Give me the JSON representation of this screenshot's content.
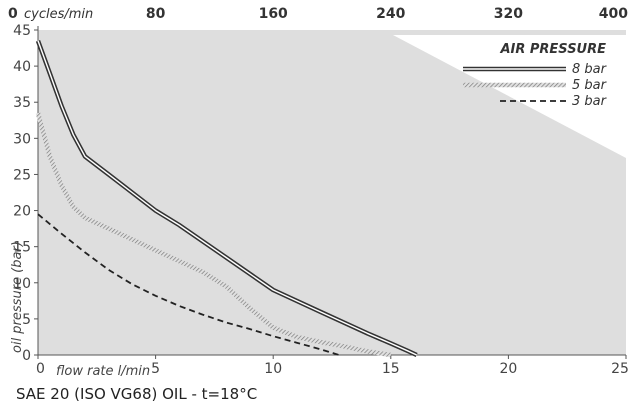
{
  "chart_data": {
    "type": "line",
    "xlabel": "flow rate l/min",
    "ylabel": "oil pressure (bar)",
    "xlim": [
      0,
      25
    ],
    "ylim": [
      0,
      45
    ],
    "x_ticks": [
      "0",
      "5",
      "10",
      "15",
      "20",
      "25"
    ],
    "y_ticks": [
      "0",
      "5",
      "10",
      "15",
      "20",
      "25",
      "30",
      "35",
      "40",
      "45"
    ],
    "top_axis": {
      "label": "cycles/min",
      "ticks": [
        "0",
        "80",
        "160",
        "240",
        "320",
        "400"
      ]
    },
    "legend": {
      "title": "AIR PRESSURE",
      "position": "top-right"
    },
    "grid": false,
    "series": [
      {
        "name": "8 bar",
        "style": "double-line",
        "color": "#333333",
        "x": [
          0,
          0.5,
          1,
          1.5,
          2,
          3,
          4,
          5,
          6,
          8,
          10,
          12,
          14,
          15,
          15.7,
          16.1
        ],
        "y": [
          43.5,
          39,
          34.5,
          30.5,
          27.5,
          25,
          22.5,
          20,
          18,
          13.5,
          9,
          6,
          3,
          1.6,
          0.6,
          0
        ]
      },
      {
        "name": "5 bar",
        "style": "hatched",
        "color": "#888888",
        "x": [
          0,
          0.5,
          1,
          1.5,
          2,
          3,
          4,
          5,
          6,
          7,
          8,
          9,
          10,
          11,
          12,
          13,
          14,
          15
        ],
        "y": [
          33.5,
          27.5,
          23.5,
          20.5,
          19,
          17.5,
          16,
          14.5,
          13,
          11.5,
          9.5,
          6.5,
          3.8,
          2.5,
          1.8,
          1.2,
          0.5,
          0
        ]
      },
      {
        "name": "3 bar",
        "style": "dashed",
        "color": "#222222",
        "x": [
          0,
          1,
          2,
          3,
          4,
          5,
          6,
          7,
          8,
          9,
          10,
          11,
          12,
          12.8
        ],
        "y": [
          19.5,
          16.8,
          14.2,
          11.8,
          9.8,
          8.2,
          6.8,
          5.6,
          4.5,
          3.6,
          2.6,
          1.7,
          0.8,
          0
        ]
      }
    ]
  },
  "caption": "SAE 20 (ISO VG68) OIL - t=18°C"
}
